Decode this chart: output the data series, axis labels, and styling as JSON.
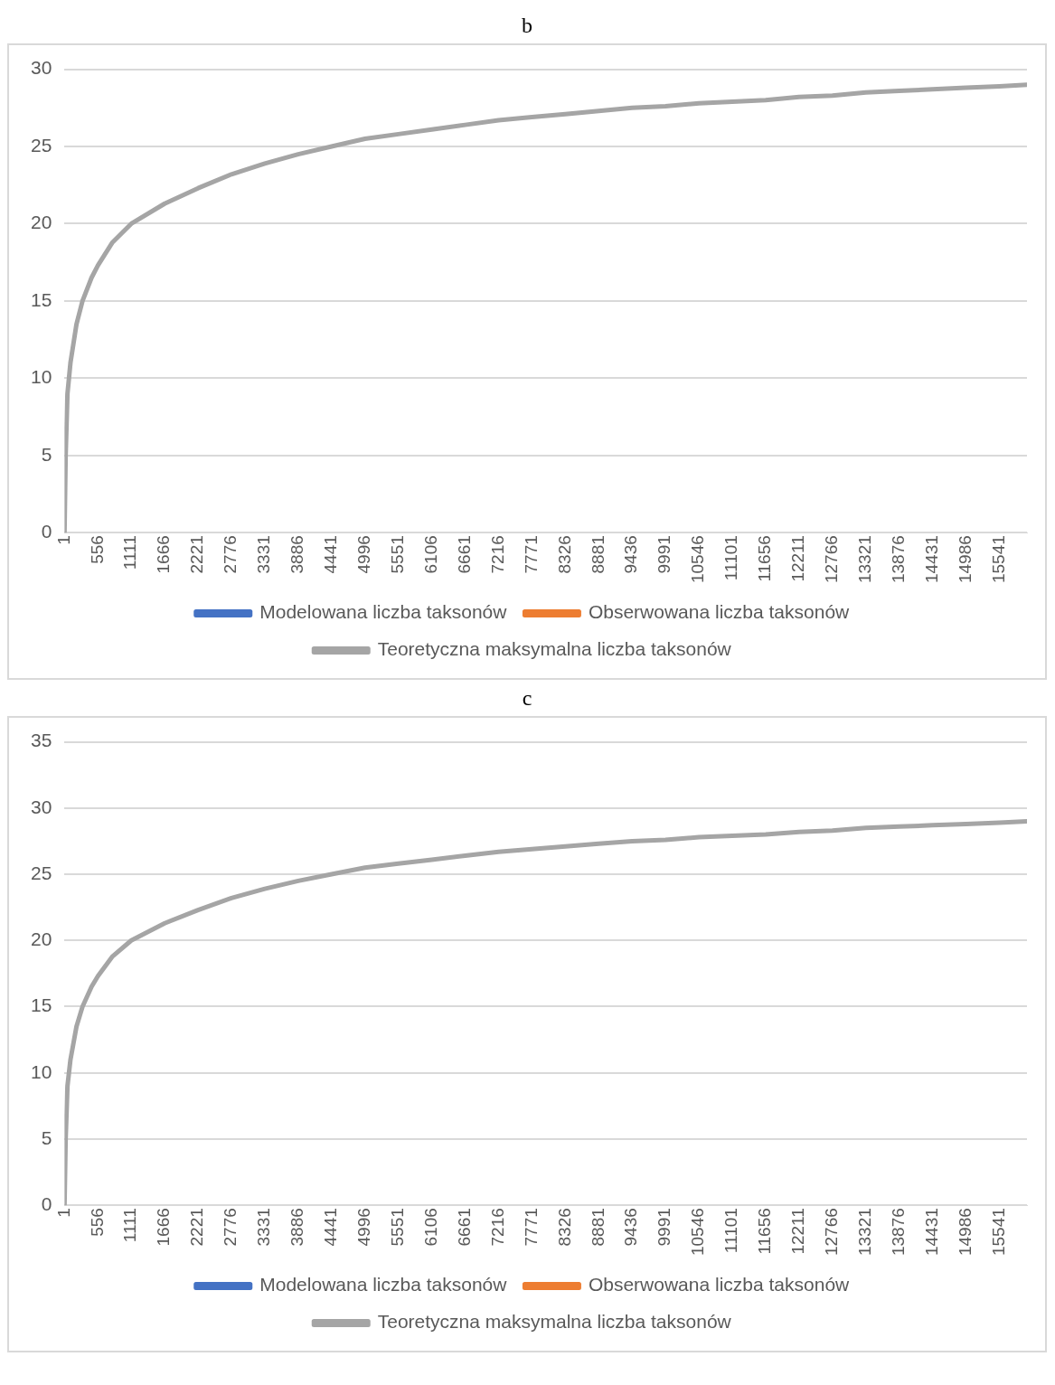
{
  "chart_data": [
    {
      "type": "line",
      "title": "b",
      "x": [
        1,
        20,
        50,
        100,
        200,
        300,
        450,
        556,
        800,
        1111,
        1666,
        2221,
        2776,
        3331,
        3886,
        4441,
        4996,
        5551,
        6106,
        6661,
        7216,
        7771,
        8326,
        8881,
        9436,
        9991,
        10546,
        11101,
        11656,
        12211,
        12766,
        13321,
        13876,
        14431,
        14986,
        15541,
        16000
      ],
      "series": [
        {
          "name": "Modelowana liczba taksonów",
          "color": "#4472c4",
          "values": [
            null,
            null,
            null,
            null,
            null,
            null,
            null,
            null,
            null,
            null,
            null,
            null,
            null,
            null,
            null,
            null,
            null,
            null,
            null,
            null,
            null,
            null,
            null,
            null,
            null,
            null,
            null,
            null,
            null,
            null,
            null,
            null,
            null,
            null,
            null,
            null,
            null
          ]
        },
        {
          "name": "Obserwowana liczba taksonów",
          "color": "#ed7d31",
          "values": [
            null,
            null,
            null,
            null,
            null,
            null,
            null,
            null,
            null,
            null,
            null,
            null,
            null,
            null,
            null,
            null,
            null,
            null,
            null,
            null,
            null,
            null,
            null,
            null,
            null,
            null,
            null,
            null,
            null,
            null,
            null,
            null,
            null,
            null,
            null,
            null,
            null
          ]
        },
        {
          "name": "Teoretyczna maksymalna liczba taksonów",
          "color": "#a5a5a5",
          "values": [
            0,
            5,
            9,
            11,
            13.5,
            15,
            16.5,
            17.3,
            18.8,
            20,
            21.3,
            22.3,
            23.2,
            23.9,
            24.5,
            25,
            25.5,
            25.8,
            26.1,
            26.4,
            26.7,
            26.9,
            27.1,
            27.3,
            27.5,
            27.6,
            27.8,
            27.9,
            28.0,
            28.2,
            28.3,
            28.5,
            28.6,
            28.7,
            28.8,
            28.9,
            29
          ]
        }
      ],
      "xlim": [
        1,
        16000
      ],
      "xticks": [
        1,
        556,
        1111,
        1666,
        2221,
        2776,
        3331,
        3886,
        4441,
        4996,
        5551,
        6106,
        6661,
        7216,
        7771,
        8326,
        8881,
        9436,
        9991,
        10546,
        11101,
        11656,
        12211,
        12766,
        13321,
        13876,
        14431,
        14986,
        15541
      ],
      "ylim": [
        0,
        30
      ],
      "yticks": [
        0,
        5,
        10,
        15,
        20,
        25,
        30
      ],
      "grid": "y",
      "legend": "bottom",
      "marker": "none",
      "line_style": "solid"
    },
    {
      "type": "line",
      "title": "c",
      "x": [
        1,
        20,
        50,
        100,
        200,
        300,
        450,
        556,
        800,
        1111,
        1666,
        2221,
        2776,
        3331,
        3886,
        4441,
        4996,
        5551,
        6106,
        6661,
        7216,
        7771,
        8326,
        8881,
        9436,
        9991,
        10546,
        11101,
        11656,
        12211,
        12766,
        13321,
        13876,
        14431,
        14986,
        15541,
        16000
      ],
      "series": [
        {
          "name": "Modelowana liczba taksonów",
          "color": "#4472c4",
          "values": [
            null,
            null,
            null,
            null,
            null,
            null,
            null,
            null,
            null,
            null,
            null,
            null,
            null,
            null,
            null,
            null,
            null,
            null,
            null,
            null,
            null,
            null,
            null,
            null,
            null,
            null,
            null,
            null,
            null,
            null,
            null,
            null,
            null,
            null,
            null,
            null,
            null
          ]
        },
        {
          "name": "Obserwowana liczba taksonów",
          "color": "#ed7d31",
          "values": [
            null,
            null,
            null,
            null,
            null,
            null,
            null,
            null,
            null,
            null,
            null,
            null,
            null,
            null,
            null,
            null,
            null,
            null,
            null,
            null,
            null,
            null,
            null,
            null,
            null,
            null,
            null,
            null,
            null,
            null,
            null,
            null,
            null,
            null,
            null,
            null,
            null
          ]
        },
        {
          "name": "Teoretyczna maksymalna liczba taksonów",
          "color": "#a5a5a5",
          "values": [
            0,
            5,
            9,
            11,
            13.5,
            15,
            16.5,
            17.3,
            18.8,
            20,
            21.3,
            22.3,
            23.2,
            23.9,
            24.5,
            25,
            25.5,
            25.8,
            26.1,
            26.4,
            26.7,
            26.9,
            27.1,
            27.3,
            27.5,
            27.6,
            27.8,
            27.9,
            28.0,
            28.2,
            28.3,
            28.5,
            28.6,
            28.7,
            28.8,
            28.9,
            29
          ]
        }
      ],
      "xlim": [
        1,
        16000
      ],
      "xticks": [
        1,
        556,
        1111,
        1666,
        2221,
        2776,
        3331,
        3886,
        4441,
        4996,
        5551,
        6106,
        6661,
        7216,
        7771,
        8326,
        8881,
        9436,
        9991,
        10546,
        11101,
        11656,
        12211,
        12766,
        13321,
        13876,
        14431,
        14986,
        15541
      ],
      "ylim": [
        0,
        35
      ],
      "yticks": [
        0,
        5,
        10,
        15,
        20,
        25,
        30,
        35
      ],
      "grid": "y",
      "legend": "bottom",
      "marker": "none",
      "line_style": "solid"
    }
  ]
}
